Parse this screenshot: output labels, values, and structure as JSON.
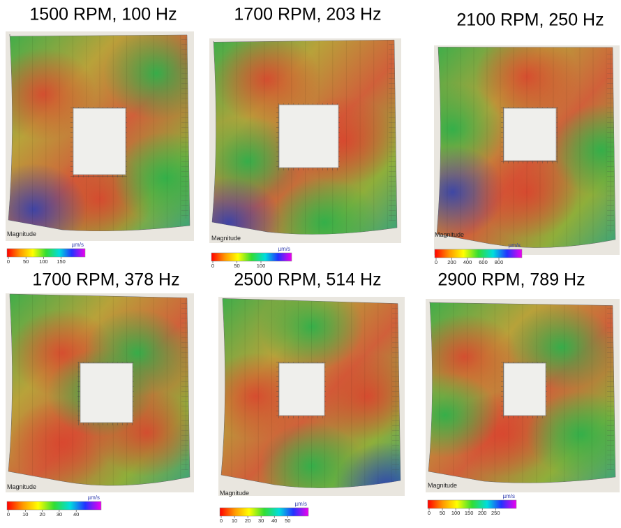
{
  "panels": [
    {
      "title": "1500 RPM, 100 Hz",
      "legend": "Magnitude",
      "unit": "µm/s",
      "ticks": [
        0,
        50,
        100,
        150
      ]
    },
    {
      "title": "1700 RPM, 203 Hz",
      "legend": "Magnitude",
      "unit": "µm/s",
      "ticks": [
        0,
        50,
        100
      ]
    },
    {
      "title": "2100 RPM, 250 Hz",
      "legend": "Magnitude",
      "unit": "µm/s",
      "ticks": [
        0,
        200,
        400,
        600,
        800
      ]
    },
    {
      "title": "1700 RPM, 378 Hz",
      "legend": "Magnitude",
      "unit": "µm/s",
      "ticks": [
        0,
        10,
        20,
        30,
        40
      ]
    },
    {
      "title": "2500 RPM, 514 Hz",
      "legend": "Magnitude",
      "unit": "µm/s",
      "ticks": [
        0,
        10,
        20,
        30,
        40,
        50
      ]
    },
    {
      "title": "2900 RPM, 789 Hz",
      "legend": "Magnitude",
      "unit": "µm/s",
      "ticks": [
        0,
        50,
        100,
        150,
        200,
        250
      ]
    }
  ]
}
